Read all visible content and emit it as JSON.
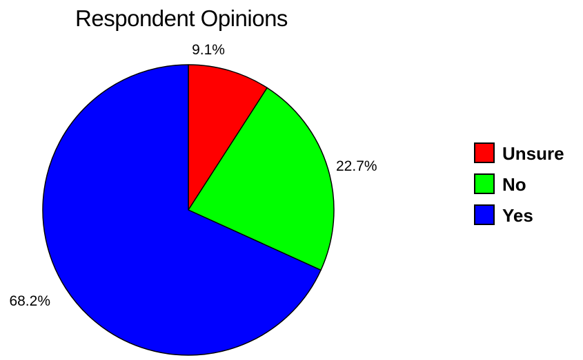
{
  "chart_data": {
    "type": "pie",
    "title": "Respondent Opinions",
    "start": "top",
    "direction": "clockwise",
    "legend_position": "right",
    "slices": [
      {
        "name": "Unsure",
        "value": 9.1,
        "label": "9.1%",
        "color": "#ff0000"
      },
      {
        "name": "No",
        "value": 22.7,
        "label": "22.7%",
        "color": "#00ff00"
      },
      {
        "name": "Yes",
        "value": 68.2,
        "label": "68.2%",
        "color": "#0000ff"
      }
    ]
  }
}
